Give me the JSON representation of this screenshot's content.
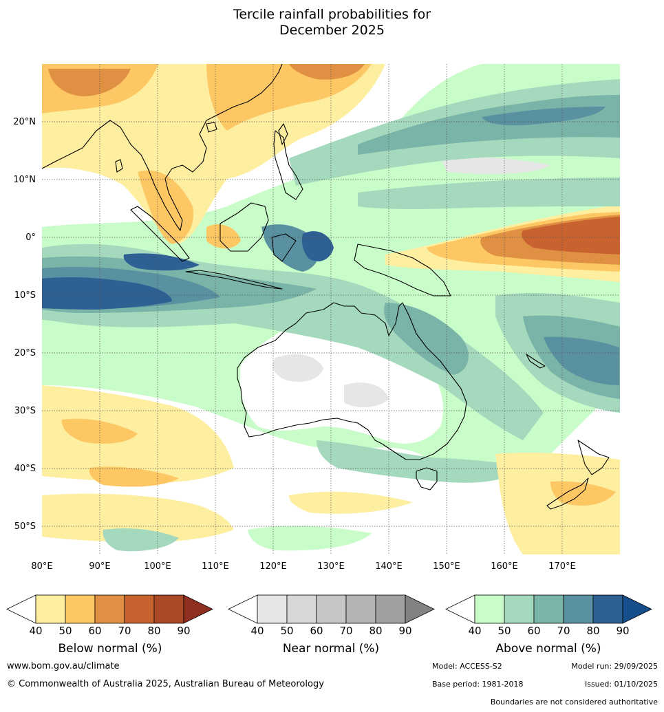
{
  "title": {
    "line1": "Tercile rainfall probabilities for",
    "line2": "December 2025"
  },
  "map": {
    "lat_labels": [
      "20°N",
      "10°N",
      "0°",
      "10°S",
      "20°S",
      "30°S",
      "40°S",
      "50°S"
    ],
    "lon_labels": [
      "80°E",
      "90°E",
      "100°E",
      "110°E",
      "120°E",
      "130°E",
      "140°E",
      "150°E",
      "160°E",
      "170°E"
    ]
  },
  "colorbars": {
    "below": {
      "title": "Below normal (%)",
      "ticks": [
        "40",
        "50",
        "60",
        "70",
        "80",
        "90"
      ],
      "colors": [
        "#feeea0",
        "#fdc864",
        "#df9043",
        "#c8632f",
        "#ab4927"
      ],
      "extend_color": "#8e2f1f"
    },
    "near": {
      "title": "Near normal (%)",
      "ticks": [
        "40",
        "50",
        "60",
        "70",
        "80",
        "90"
      ],
      "colors": [
        "#e6e6e6",
        "#d7d7d7",
        "#c6c6c6",
        "#b4b4b4",
        "#a0a0a0"
      ],
      "extend_color": "#828282"
    },
    "above": {
      "title": "Above normal (%)",
      "ticks": [
        "40",
        "50",
        "60",
        "70",
        "80",
        "90"
      ],
      "colors": [
        "#c8fcc8",
        "#a5d9bd",
        "#7ab3a7",
        "#5a91a1",
        "#2f6094"
      ],
      "extend_color": "#154e8a"
    }
  },
  "footer": {
    "website": "www.bom.gov.au/climate",
    "copyright": "© Commonwealth of Australia 2025, Australian Bureau of Meteorology",
    "model": "Model: ACCESS-S2",
    "model_run": "Model run: 29/09/2025",
    "base_period": "Base period: 1981-2018",
    "issued": "Issued: 01/10/2025",
    "disclaimer": "Boundaries are not considered authoritative"
  }
}
